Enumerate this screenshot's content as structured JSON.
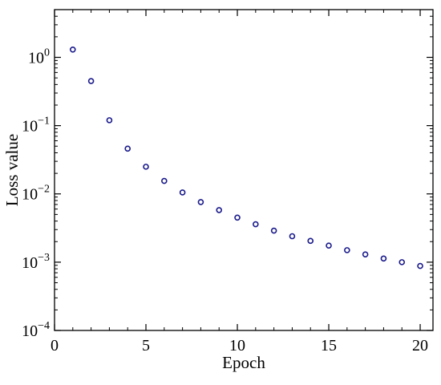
{
  "chart_data": {
    "type": "scatter",
    "title": "",
    "xlabel": "Epoch",
    "ylabel": "Loss value",
    "xlim": [
      0,
      20.7
    ],
    "ylim": [
      0.0001,
      5
    ],
    "yscale": "log",
    "grid": false,
    "x_ticks": [
      0,
      5,
      10,
      15,
      20
    ],
    "x_tick_labels": [
      "0",
      "5",
      "10",
      "15",
      "20"
    ],
    "y_ticks": [
      {
        "value": 1,
        "base": "10",
        "exp": "0"
      },
      {
        "value": 0.1,
        "base": "10",
        "exp": "−1"
      },
      {
        "value": 0.01,
        "base": "10",
        "exp": "−2"
      },
      {
        "value": 0.001,
        "base": "10",
        "exp": "−3"
      },
      {
        "value": 0.0001,
        "base": "10",
        "exp": "−4"
      }
    ],
    "marker": "open-circle",
    "marker_color": "#1a1a8c",
    "series": [
      {
        "x": [
          1,
          2,
          3,
          4,
          5,
          6,
          7,
          8,
          9,
          10,
          11,
          12,
          13,
          14,
          15,
          16,
          17,
          18,
          19,
          20
        ],
        "values": [
          1.3,
          0.45,
          0.12,
          0.046,
          0.025,
          0.0155,
          0.0105,
          0.0076,
          0.0058,
          0.0045,
          0.0036,
          0.0029,
          0.0024,
          0.00205,
          0.00175,
          0.0015,
          0.0013,
          0.00113,
          0.001,
          0.00088
        ]
      }
    ]
  }
}
